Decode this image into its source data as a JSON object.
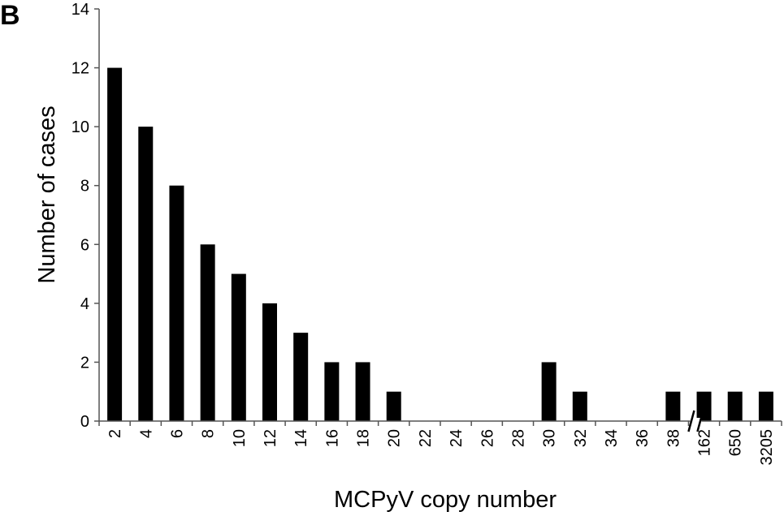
{
  "panel_label": "B",
  "chart_data": {
    "type": "bar",
    "categories": [
      "2",
      "4",
      "6",
      "8",
      "10",
      "12",
      "14",
      "16",
      "18",
      "20",
      "22",
      "24",
      "26",
      "28",
      "30",
      "32",
      "34",
      "36",
      "38",
      "162",
      "650",
      "3205"
    ],
    "values": [
      12,
      10,
      8,
      6,
      5,
      4,
      3,
      2,
      2,
      1,
      0,
      0,
      0,
      0,
      2,
      1,
      0,
      0,
      1,
      1,
      1,
      1
    ],
    "xlabel": "MCPyV copy number",
    "ylabel": "Number of cases",
    "ylim": [
      0,
      14
    ],
    "yticks": [
      0,
      2,
      4,
      6,
      8,
      10,
      12,
      14
    ],
    "axis_break_after": "38",
    "grid": false
  }
}
